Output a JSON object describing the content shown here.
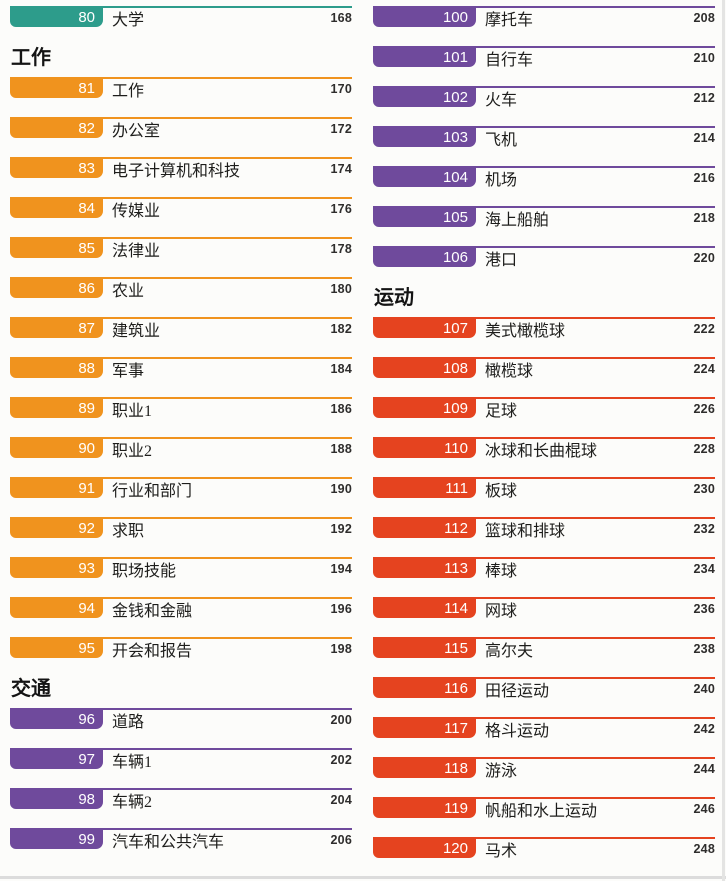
{
  "colors": {
    "teal": "#2D9C8B",
    "orange": "#F0931E",
    "purple": "#6F4A9C",
    "red": "#E5431F"
  },
  "toc": {
    "columns": [
      {
        "blocks": [
          {
            "kind": "entry",
            "num": "80",
            "title": "大学",
            "page": "168",
            "color": "teal"
          },
          {
            "kind": "header",
            "label": "工作"
          },
          {
            "kind": "entry",
            "num": "81",
            "title": "工作",
            "page": "170",
            "color": "orange"
          },
          {
            "kind": "entry",
            "num": "82",
            "title": "办公室",
            "page": "172",
            "color": "orange"
          },
          {
            "kind": "entry",
            "num": "83",
            "title": "电子计算机和科技",
            "page": "174",
            "color": "orange"
          },
          {
            "kind": "entry",
            "num": "84",
            "title": "传媒业",
            "page": "176",
            "color": "orange"
          },
          {
            "kind": "entry",
            "num": "85",
            "title": "法律业",
            "page": "178",
            "color": "orange"
          },
          {
            "kind": "entry",
            "num": "86",
            "title": "农业",
            "page": "180",
            "color": "orange"
          },
          {
            "kind": "entry",
            "num": "87",
            "title": "建筑业",
            "page": "182",
            "color": "orange"
          },
          {
            "kind": "entry",
            "num": "88",
            "title": "军事",
            "page": "184",
            "color": "orange"
          },
          {
            "kind": "entry",
            "num": "89",
            "title": "职业1",
            "page": "186",
            "color": "orange"
          },
          {
            "kind": "entry",
            "num": "90",
            "title": "职业2",
            "page": "188",
            "color": "orange"
          },
          {
            "kind": "entry",
            "num": "91",
            "title": "行业和部门",
            "page": "190",
            "color": "orange"
          },
          {
            "kind": "entry",
            "num": "92",
            "title": "求职",
            "page": "192",
            "color": "orange"
          },
          {
            "kind": "entry",
            "num": "93",
            "title": "职场技能",
            "page": "194",
            "color": "orange"
          },
          {
            "kind": "entry",
            "num": "94",
            "title": "金钱和金融",
            "page": "196",
            "color": "orange"
          },
          {
            "kind": "entry",
            "num": "95",
            "title": "开会和报告",
            "page": "198",
            "color": "orange"
          },
          {
            "kind": "header",
            "label": "交通"
          },
          {
            "kind": "entry",
            "num": "96",
            "title": "道路",
            "page": "200",
            "color": "purple"
          },
          {
            "kind": "entry",
            "num": "97",
            "title": "车辆1",
            "page": "202",
            "color": "purple"
          },
          {
            "kind": "entry",
            "num": "98",
            "title": "车辆2",
            "page": "204",
            "color": "purple"
          },
          {
            "kind": "entry",
            "num": "99",
            "title": "汽车和公共汽车",
            "page": "206",
            "color": "purple"
          }
        ]
      },
      {
        "blocks": [
          {
            "kind": "entry",
            "num": "100",
            "title": "摩托车",
            "page": "208",
            "color": "purple"
          },
          {
            "kind": "entry",
            "num": "101",
            "title": "自行车",
            "page": "210",
            "color": "purple"
          },
          {
            "kind": "entry",
            "num": "102",
            "title": "火车",
            "page": "212",
            "color": "purple"
          },
          {
            "kind": "entry",
            "num": "103",
            "title": "飞机",
            "page": "214",
            "color": "purple"
          },
          {
            "kind": "entry",
            "num": "104",
            "title": "机场",
            "page": "216",
            "color": "purple"
          },
          {
            "kind": "entry",
            "num": "105",
            "title": "海上船舶",
            "page": "218",
            "color": "purple"
          },
          {
            "kind": "entry",
            "num": "106",
            "title": "港口",
            "page": "220",
            "color": "purple"
          },
          {
            "kind": "header",
            "label": "运动"
          },
          {
            "kind": "entry",
            "num": "107",
            "title": "美式橄榄球",
            "page": "222",
            "color": "red"
          },
          {
            "kind": "entry",
            "num": "108",
            "title": "橄榄球",
            "page": "224",
            "color": "red"
          },
          {
            "kind": "entry",
            "num": "109",
            "title": "足球",
            "page": "226",
            "color": "red"
          },
          {
            "kind": "entry",
            "num": "110",
            "title": "冰球和长曲棍球",
            "page": "228",
            "color": "red"
          },
          {
            "kind": "entry",
            "num": "111",
            "title": "板球",
            "page": "230",
            "color": "red"
          },
          {
            "kind": "entry",
            "num": "112",
            "title": "篮球和排球",
            "page": "232",
            "color": "red"
          },
          {
            "kind": "entry",
            "num": "113",
            "title": "棒球",
            "page": "234",
            "color": "red"
          },
          {
            "kind": "entry",
            "num": "114",
            "title": "网球",
            "page": "236",
            "color": "red"
          },
          {
            "kind": "entry",
            "num": "115",
            "title": "高尔夫",
            "page": "238",
            "color": "red"
          },
          {
            "kind": "entry",
            "num": "116",
            "title": "田径运动",
            "page": "240",
            "color": "red"
          },
          {
            "kind": "entry",
            "num": "117",
            "title": "格斗运动",
            "page": "242",
            "color": "red"
          },
          {
            "kind": "entry",
            "num": "118",
            "title": "游泳",
            "page": "244",
            "color": "red"
          },
          {
            "kind": "entry",
            "num": "119",
            "title": "帆船和水上运动",
            "page": "246",
            "color": "red"
          },
          {
            "kind": "entry",
            "num": "120",
            "title": "马术",
            "page": "248",
            "color": "red"
          }
        ]
      }
    ]
  }
}
